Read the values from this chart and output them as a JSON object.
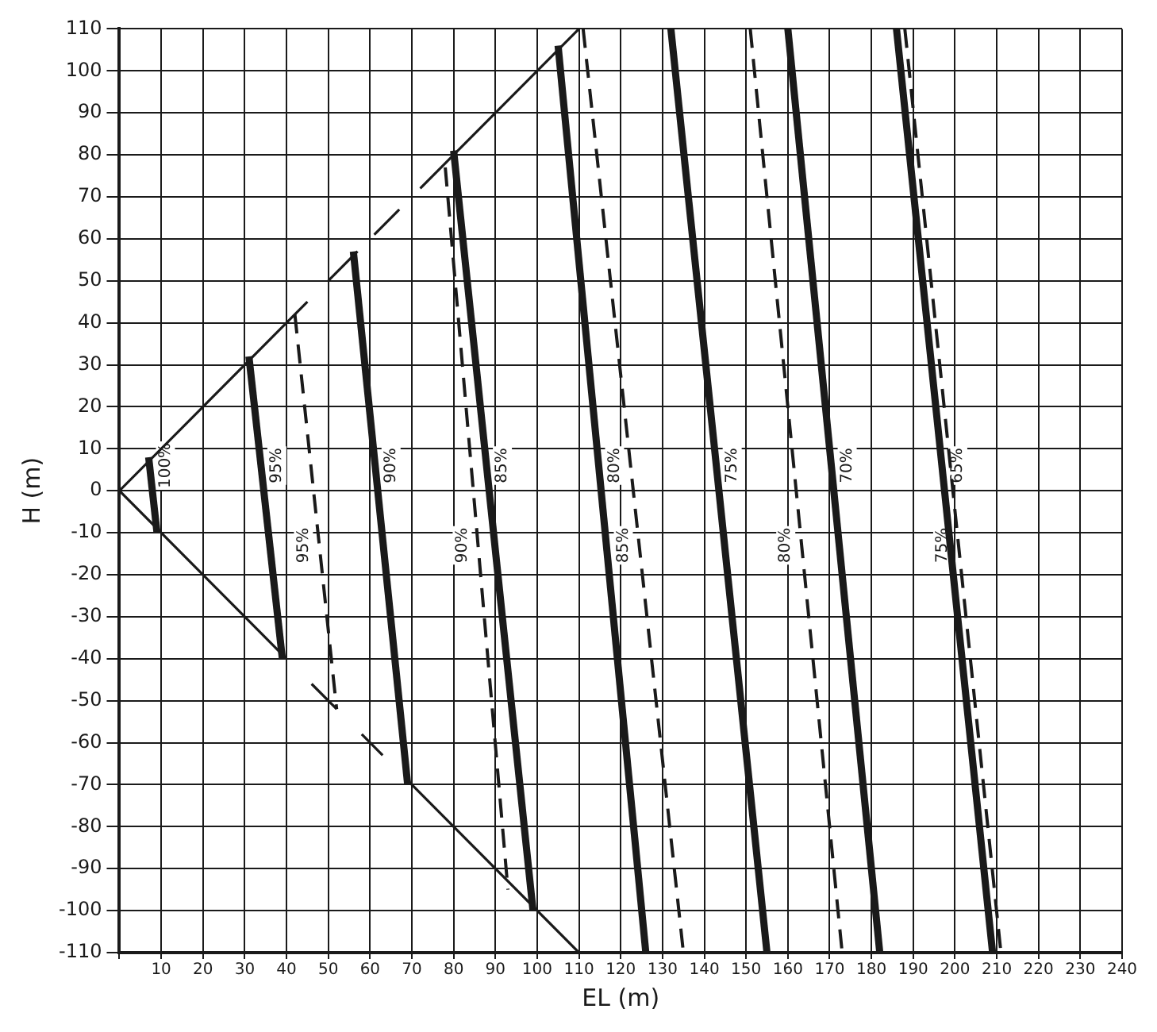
{
  "chart_data": {
    "type": "line",
    "xlabel": "EL (m)",
    "ylabel": "H (m)",
    "xlim": [
      0,
      240
    ],
    "ylim": [
      -110,
      110
    ],
    "xticks": [
      {
        "value": 0,
        "label": null
      },
      10,
      20,
      30,
      40,
      50,
      60,
      70,
      80,
      90,
      100,
      110,
      120,
      130,
      140,
      150,
      160,
      170,
      180,
      190,
      200,
      210,
      220,
      230,
      240
    ],
    "yticks": [
      -110,
      -100,
      -90,
      -80,
      -70,
      -60,
      -50,
      -40,
      -30,
      -20,
      -10,
      0,
      10,
      20,
      30,
      40,
      50,
      60,
      70,
      80,
      90,
      100,
      110
    ],
    "grid": true,
    "legend": false,
    "marker": "none",
    "series": [
      {
        "color": "#1a1a1a",
        "line_style": "solid",
        "x": [
          0,
          45,
          47,
          50,
          57,
          59,
          61,
          67,
          70,
          72,
          110
        ],
        "values": [
          0,
          45,
          null,
          50,
          57,
          null,
          61,
          67,
          null,
          72,
          110
        ]
      },
      {
        "color": "#1a1a1a",
        "line_style": "solid",
        "x": [
          0,
          40,
          43,
          46,
          52,
          55,
          58,
          63,
          66,
          69,
          110
        ],
        "values": [
          0,
          -40,
          null,
          -46,
          -52,
          null,
          -58,
          -63,
          null,
          -69,
          -110
        ]
      },
      {
        "name": "100%",
        "color": "#1a1a1a",
        "line_style": "solid",
        "x": [
          7,
          9
        ],
        "values": [
          8,
          -10
        ]
      },
      {
        "name": "95%",
        "color": "#1a1a1a",
        "line_style": "solid",
        "x": [
          31,
          39
        ],
        "values": [
          32,
          -40
        ]
      },
      {
        "name": "90%",
        "color": "#1a1a1a",
        "line_style": "solid",
        "x": [
          56,
          69
        ],
        "values": [
          57,
          -70
        ]
      },
      {
        "name": "85%",
        "color": "#1a1a1a",
        "line_style": "solid",
        "x": [
          80,
          99
        ],
        "values": [
          81,
          -100
        ]
      },
      {
        "name": "80%",
        "color": "#1a1a1a",
        "line_style": "solid",
        "x": [
          105,
          126
        ],
        "values": [
          106,
          -110
        ]
      },
      {
        "name": "75%",
        "color": "#1a1a1a",
        "line_style": "solid",
        "x": [
          132,
          155
        ],
        "values": [
          110,
          -110
        ]
      },
      {
        "name": "70%",
        "color": "#1a1a1a",
        "line_style": "solid",
        "x": [
          160,
          182
        ],
        "values": [
          110,
          -110
        ]
      },
      {
        "name": "65%",
        "color": "#1a1a1a",
        "line_style": "solid",
        "x": [
          186,
          209
        ],
        "values": [
          110,
          -110
        ]
      },
      {
        "name": "95%",
        "color": "#1a1a1a",
        "line_style": "dashed",
        "x": [
          42,
          52
        ],
        "values": [
          42,
          -52
        ]
      },
      {
        "name": "90%",
        "color": "#1a1a1a",
        "line_style": "dashed",
        "x": [
          78,
          93
        ],
        "values": [
          77,
          -95
        ]
      },
      {
        "name": "85%",
        "color": "#1a1a1a",
        "line_style": "dashed",
        "x": [
          111,
          135
        ],
        "values": [
          110,
          -110
        ]
      },
      {
        "name": "80%",
        "color": "#1a1a1a",
        "line_style": "dashed",
        "x": [
          151,
          173
        ],
        "values": [
          110,
          -110
        ]
      },
      {
        "name": "75%",
        "color": "#1a1a1a",
        "line_style": "dashed",
        "x": [
          188,
          211
        ],
        "values": [
          110,
          -110
        ]
      }
    ]
  }
}
